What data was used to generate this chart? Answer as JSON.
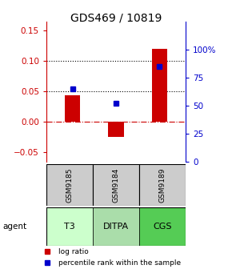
{
  "title": "GDS469 / 10819",
  "samples": [
    "GSM9185",
    "GSM9184",
    "GSM9189"
  ],
  "agents": [
    "T3",
    "DITPA",
    "CGS"
  ],
  "log_ratios": [
    0.044,
    -0.025,
    0.12
  ],
  "percentile_ranks": [
    65,
    52,
    85
  ],
  "bar_color": "#cc0000",
  "marker_color": "#0000cc",
  "ylim_left": [
    -0.065,
    0.165
  ],
  "ylim_right": [
    0,
    125
  ],
  "yticks_left": [
    -0.05,
    0.0,
    0.05,
    0.1,
    0.15
  ],
  "yticks_right_vals": [
    0,
    25,
    50,
    75,
    100
  ],
  "yticks_right_labels": [
    "0",
    "25",
    "50",
    "75",
    "100%"
  ],
  "hlines_dotted": [
    0.05,
    0.1
  ],
  "zero_line_color": "#cc0000",
  "dotted_line_color": "#000000",
  "bar_width": 0.35,
  "left_label_color": "#cc0000",
  "right_label_color": "#0000cc",
  "agent_colors": [
    "#ccffcc",
    "#aaddaa",
    "#55cc55"
  ],
  "sample_bg_color": "#cccccc",
  "title_fontsize": 10,
  "tick_fontsize": 7.5
}
